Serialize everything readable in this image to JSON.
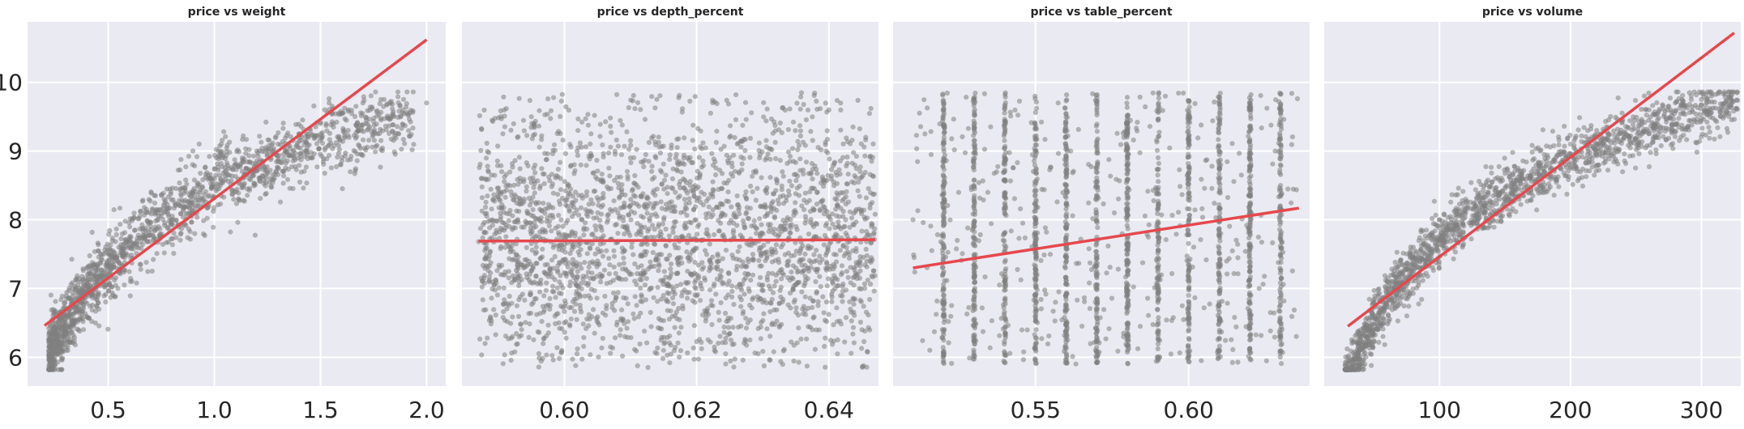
{
  "chart_data": [
    {
      "type": "scatter",
      "title": "price vs weight",
      "xlabel": "",
      "ylabel": "",
      "xlim": [
        0.12,
        2.09
      ],
      "ylim": [
        5.58,
        10.88
      ],
      "xticks": [
        0.5,
        1.0,
        1.5,
        2.0
      ],
      "xtick_labels": [
        "0.5",
        "1.0",
        "1.5",
        "2.0"
      ],
      "yticks": [
        6,
        7,
        8,
        9,
        10
      ],
      "ytick_labels": [
        "6",
        "7",
        "8",
        "9",
        "10"
      ],
      "grid": true,
      "scatter_color": "#808080",
      "line_color": "#e5484d",
      "points": [
        [
          0.24,
          5.95
        ],
        [
          0.26,
          6.05
        ],
        [
          0.28,
          6.2
        ],
        [
          0.3,
          6.35
        ],
        [
          0.31,
          6.1
        ],
        [
          0.33,
          6.55
        ],
        [
          0.35,
          6.7
        ],
        [
          0.36,
          6.4
        ],
        [
          0.38,
          6.85
        ],
        [
          0.4,
          7.0
        ],
        [
          0.42,
          6.9
        ],
        [
          0.45,
          7.15
        ],
        [
          0.5,
          7.3
        ],
        [
          0.52,
          7.55
        ],
        [
          0.55,
          7.6
        ],
        [
          0.6,
          7.7
        ],
        [
          0.7,
          7.9
        ],
        [
          0.72,
          8.1
        ],
        [
          0.75,
          7.75
        ],
        [
          0.8,
          8.0
        ],
        [
          0.9,
          8.25
        ],
        [
          0.95,
          8.3
        ],
        [
          1.0,
          8.6
        ],
        [
          1.01,
          8.9
        ],
        [
          1.05,
          8.7
        ],
        [
          1.1,
          8.8
        ],
        [
          1.2,
          9.0
        ],
        [
          1.25,
          8.95
        ],
        [
          1.3,
          9.1
        ],
        [
          1.4,
          9.25
        ],
        [
          1.5,
          9.4
        ],
        [
          1.52,
          9.6
        ],
        [
          1.6,
          9.55
        ],
        [
          1.7,
          9.7
        ],
        [
          1.8,
          9.75
        ],
        [
          2.0,
          9.7
        ]
      ],
      "regression": {
        "x": [
          0.2,
          2.0
        ],
        "y": [
          6.46,
          10.62
        ]
      }
    },
    {
      "type": "scatter",
      "title": "price vs depth_percent",
      "xlabel": "",
      "ylabel": "",
      "xlim": [
        0.5845,
        0.6475
      ],
      "ylim": [
        5.58,
        10.88
      ],
      "xticks": [
        0.6,
        0.62,
        0.64
      ],
      "xtick_labels": [
        "0.60",
        "0.62",
        "0.64"
      ],
      "yticks": [
        6,
        7,
        8,
        9,
        10
      ],
      "ytick_labels": [],
      "grid": true,
      "scatter_color": "#808080",
      "line_color": "#e5484d",
      "points": [
        [
          0.588,
          6.2
        ],
        [
          0.59,
          8.4
        ],
        [
          0.595,
          9.5
        ],
        [
          0.6,
          6.5
        ],
        [
          0.605,
          7.4
        ],
        [
          0.61,
          8.9
        ],
        [
          0.615,
          6.1
        ],
        [
          0.62,
          7.7
        ],
        [
          0.625,
          9.2
        ],
        [
          0.63,
          6.8
        ],
        [
          0.635,
          8.1
        ],
        [
          0.64,
          9.6
        ],
        [
          0.645,
          6.4
        ]
      ],
      "regression": {
        "x": [
          0.587,
          0.647
        ],
        "y": [
          7.69,
          7.71
        ]
      }
    },
    {
      "type": "scatter",
      "title": "price vs table_percent",
      "xlabel": "",
      "ylabel": "",
      "xlim": [
        0.5035,
        0.6395
      ],
      "ylim": [
        5.58,
        10.88
      ],
      "xticks": [
        0.55,
        0.6
      ],
      "xtick_labels": [
        "0.55",
        "0.60"
      ],
      "yticks": [
        6,
        7,
        8,
        9,
        10
      ],
      "ytick_labels": [],
      "grid": true,
      "scatter_color": "#808080",
      "line_color": "#e5484d",
      "points": [
        [
          0.51,
          8.0
        ],
        [
          0.52,
          6.6
        ],
        [
          0.53,
          9.3
        ],
        [
          0.54,
          7.1
        ],
        [
          0.55,
          8.7
        ],
        [
          0.56,
          6.3
        ],
        [
          0.57,
          9.6
        ],
        [
          0.58,
          7.5
        ],
        [
          0.59,
          8.2
        ],
        [
          0.6,
          6.9
        ],
        [
          0.61,
          9.0
        ],
        [
          0.62,
          7.8
        ],
        [
          0.63,
          8.5
        ]
      ],
      "columns": [
        0.52,
        0.53,
        0.54,
        0.55,
        0.56,
        0.57,
        0.58,
        0.59,
        0.6,
        0.61,
        0.62,
        0.63
      ],
      "regression": {
        "x": [
          0.51,
          0.636
        ],
        "y": [
          7.3,
          8.17
        ]
      }
    },
    {
      "type": "scatter",
      "title": "price vs volume",
      "xlabel": "",
      "ylabel": "",
      "xlim": [
        12,
        330
      ],
      "ylim": [
        5.58,
        10.88
      ],
      "xticks": [
        100,
        200,
        300
      ],
      "xtick_labels": [
        "100",
        "200",
        "300"
      ],
      "yticks": [
        6,
        7,
        8,
        9,
        10
      ],
      "ytick_labels": [],
      "grid": true,
      "scatter_color": "#808080",
      "line_color": "#e5484d",
      "points": [
        [
          30,
          6.0
        ],
        [
          40,
          6.4
        ],
        [
          50,
          6.8
        ],
        [
          60,
          7.1
        ],
        [
          70,
          7.4
        ],
        [
          80,
          7.6
        ],
        [
          90,
          7.85
        ],
        [
          100,
          8.0
        ],
        [
          120,
          8.3
        ],
        [
          140,
          8.55
        ],
        [
          160,
          8.75
        ],
        [
          180,
          8.95
        ],
        [
          200,
          9.1
        ],
        [
          220,
          9.3
        ],
        [
          240,
          9.45
        ],
        [
          260,
          9.6
        ],
        [
          280,
          9.7
        ],
        [
          300,
          9.75
        ],
        [
          320,
          9.7
        ]
      ],
      "regression": {
        "x": [
          30,
          325
        ],
        "y": [
          6.45,
          10.72
        ]
      }
    }
  ]
}
